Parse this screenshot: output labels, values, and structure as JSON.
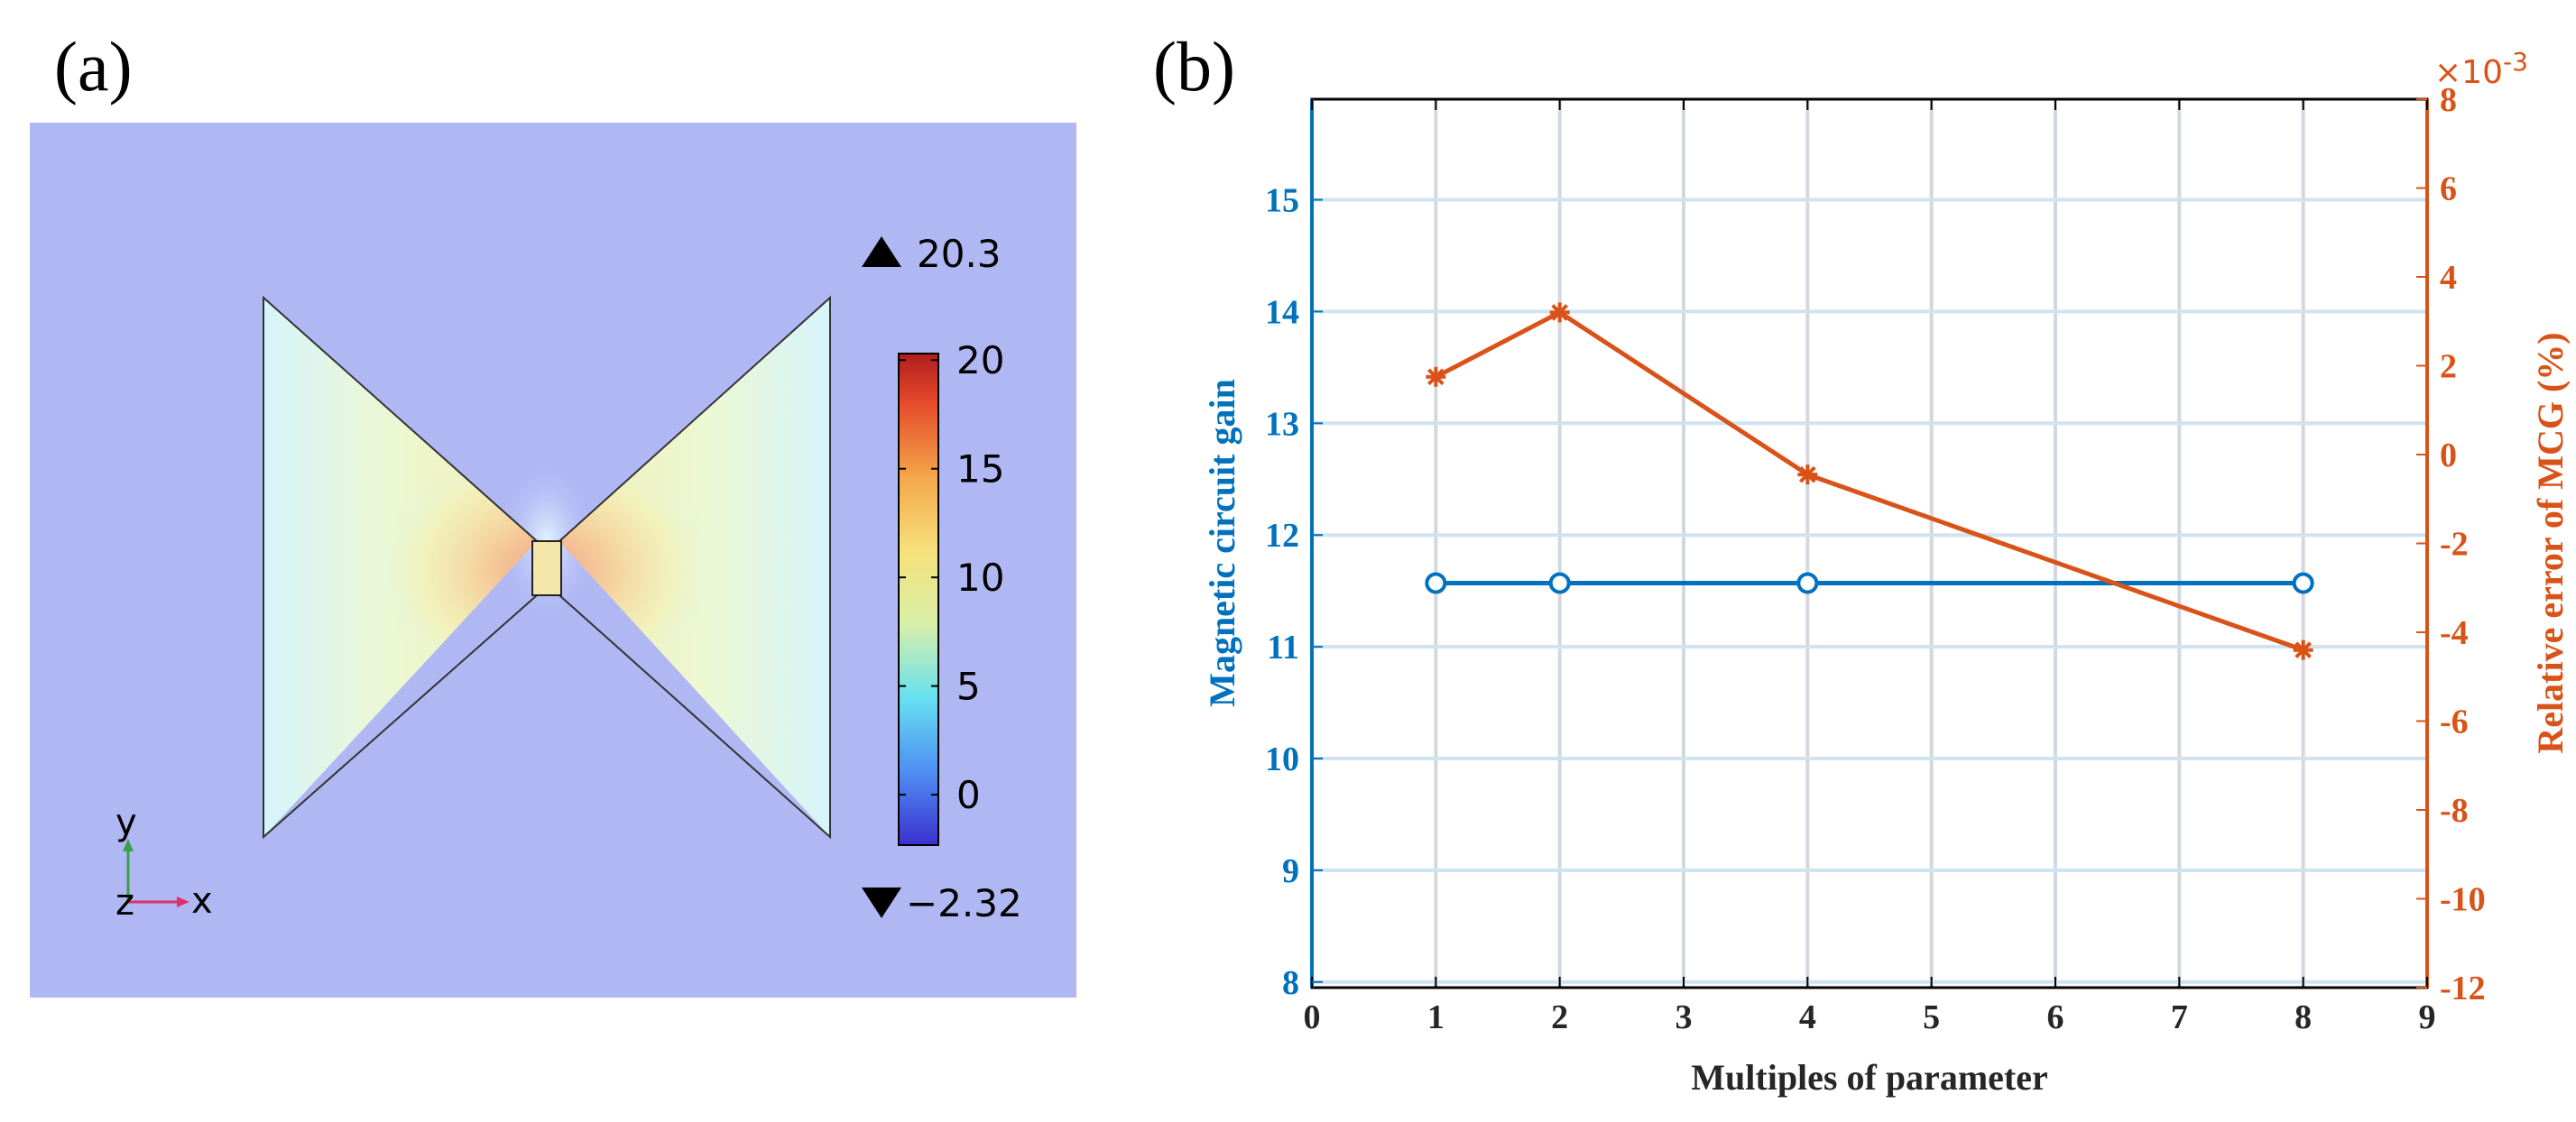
{
  "panel_a": {
    "label": "(a)",
    "colorbar": {
      "max_label": "20.3",
      "min_label": "−2.32",
      "ticks": [
        "20",
        "15",
        "10",
        "5",
        "0"
      ],
      "tick_values": [
        20,
        15,
        10,
        5,
        0
      ],
      "range": [
        -2.32,
        20.3
      ],
      "colors": [
        "#3b2fd0",
        "#4f8ff2",
        "#67e0f0",
        "#d8f0a8",
        "#f6e07a",
        "#f4a64a",
        "#e54a2b",
        "#b01d1d"
      ]
    },
    "axes_triad": {
      "y": "y",
      "z": "z",
      "x": "x"
    },
    "field_colors": {
      "background": "#b0b8f4",
      "hot": "#f29a86",
      "warm": "#f4f0b0",
      "cool": "#d8f8ec"
    }
  },
  "panel_b": {
    "label": "(b)"
  },
  "chart_data": {
    "type": "line",
    "x": [
      1,
      2,
      4,
      8
    ],
    "xlabel": "Multiples of parameter",
    "xlim": [
      0,
      9
    ],
    "xticks": [
      "0",
      "1",
      "2",
      "3",
      "4",
      "5",
      "6",
      "7",
      "8",
      "9"
    ],
    "grid": true,
    "series": [
      {
        "axis": "left",
        "values": [
          11.57,
          11.57,
          11.57,
          11.57
        ],
        "marker": "circle",
        "color": "#0072BD"
      },
      {
        "axis": "right",
        "values": [
          1.75,
          3.2,
          -0.45,
          -4.4
        ],
        "marker": "asterisk",
        "color": "#D95319"
      }
    ],
    "y_left": {
      "label": "Magnetic circuit gain",
      "ylim": [
        7.95,
        15.9
      ],
      "ticks": [
        "8",
        "9",
        "10",
        "11",
        "12",
        "13",
        "14",
        "15"
      ],
      "tick_values": [
        8,
        9,
        10,
        11,
        12,
        13,
        14,
        15
      ],
      "color": "#0072BD"
    },
    "y_right": {
      "label": "Relative error of MCG (%)",
      "ylim": [
        -12,
        8
      ],
      "multiplier": "×10",
      "multiplier_exp": "-3",
      "ticks": [
        "8",
        "6",
        "4",
        "2",
        "0",
        "-2",
        "-4",
        "-6",
        "-8",
        "-10",
        "-12"
      ],
      "tick_values": [
        8,
        6,
        4,
        2,
        0,
        -2,
        -4,
        -6,
        -8,
        -10,
        -12
      ],
      "color": "#D95319"
    }
  }
}
